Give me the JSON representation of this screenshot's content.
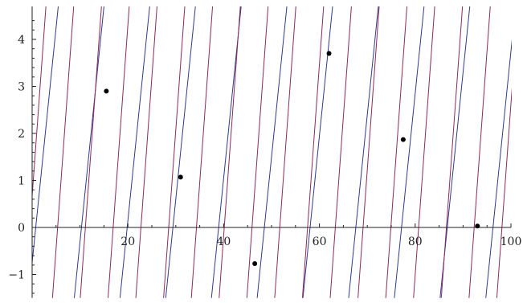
{
  "chart_data": {
    "type": "line",
    "title": "",
    "xlabel": "",
    "ylabel": "",
    "xlim": [
      0,
      100
    ],
    "ylim": [
      -1.5,
      4.7
    ],
    "x_ticks": [
      20,
      40,
      60,
      80,
      100
    ],
    "y_ticks": [
      -1,
      1,
      2,
      3,
      4
    ],
    "origin_label": "0",
    "grid": false,
    "legend": "none",
    "series": [
      {
        "color": "#2e3a8c",
        "style": "sawtooth",
        "period": 9.55,
        "slope": 1.0,
        "segments_x_start": [
          -0.75,
          8.8,
          18.35,
          27.9,
          37.45,
          47.0,
          56.55,
          66.1,
          75.65,
          85.2,
          94.75
        ]
      },
      {
        "color": "#8c2a5a",
        "style": "sawtooth",
        "period": 5.8,
        "slope": 1.4,
        "segments_x_start": [
          -1.55,
          4.25,
          10.05,
          15.85,
          21.65,
          27.45,
          33.25,
          39.05,
          44.85,
          50.65,
          56.45,
          62.25,
          68.05,
          73.85,
          79.65,
          85.45,
          91.25,
          97.05
        ]
      }
    ],
    "points": [
      {
        "x": 15.5,
        "y": 2.9
      },
      {
        "x": 31.0,
        "y": 1.07
      },
      {
        "x": 46.5,
        "y": -0.77
      },
      {
        "x": 62.0,
        "y": 3.7
      },
      {
        "x": 77.5,
        "y": 1.87
      },
      {
        "x": 93.0,
        "y": 0.03
      }
    ],
    "point_color": "#000000",
    "line_colors": {
      "blue": "#2e3a8c",
      "purple": "#8c2a5a"
    }
  }
}
